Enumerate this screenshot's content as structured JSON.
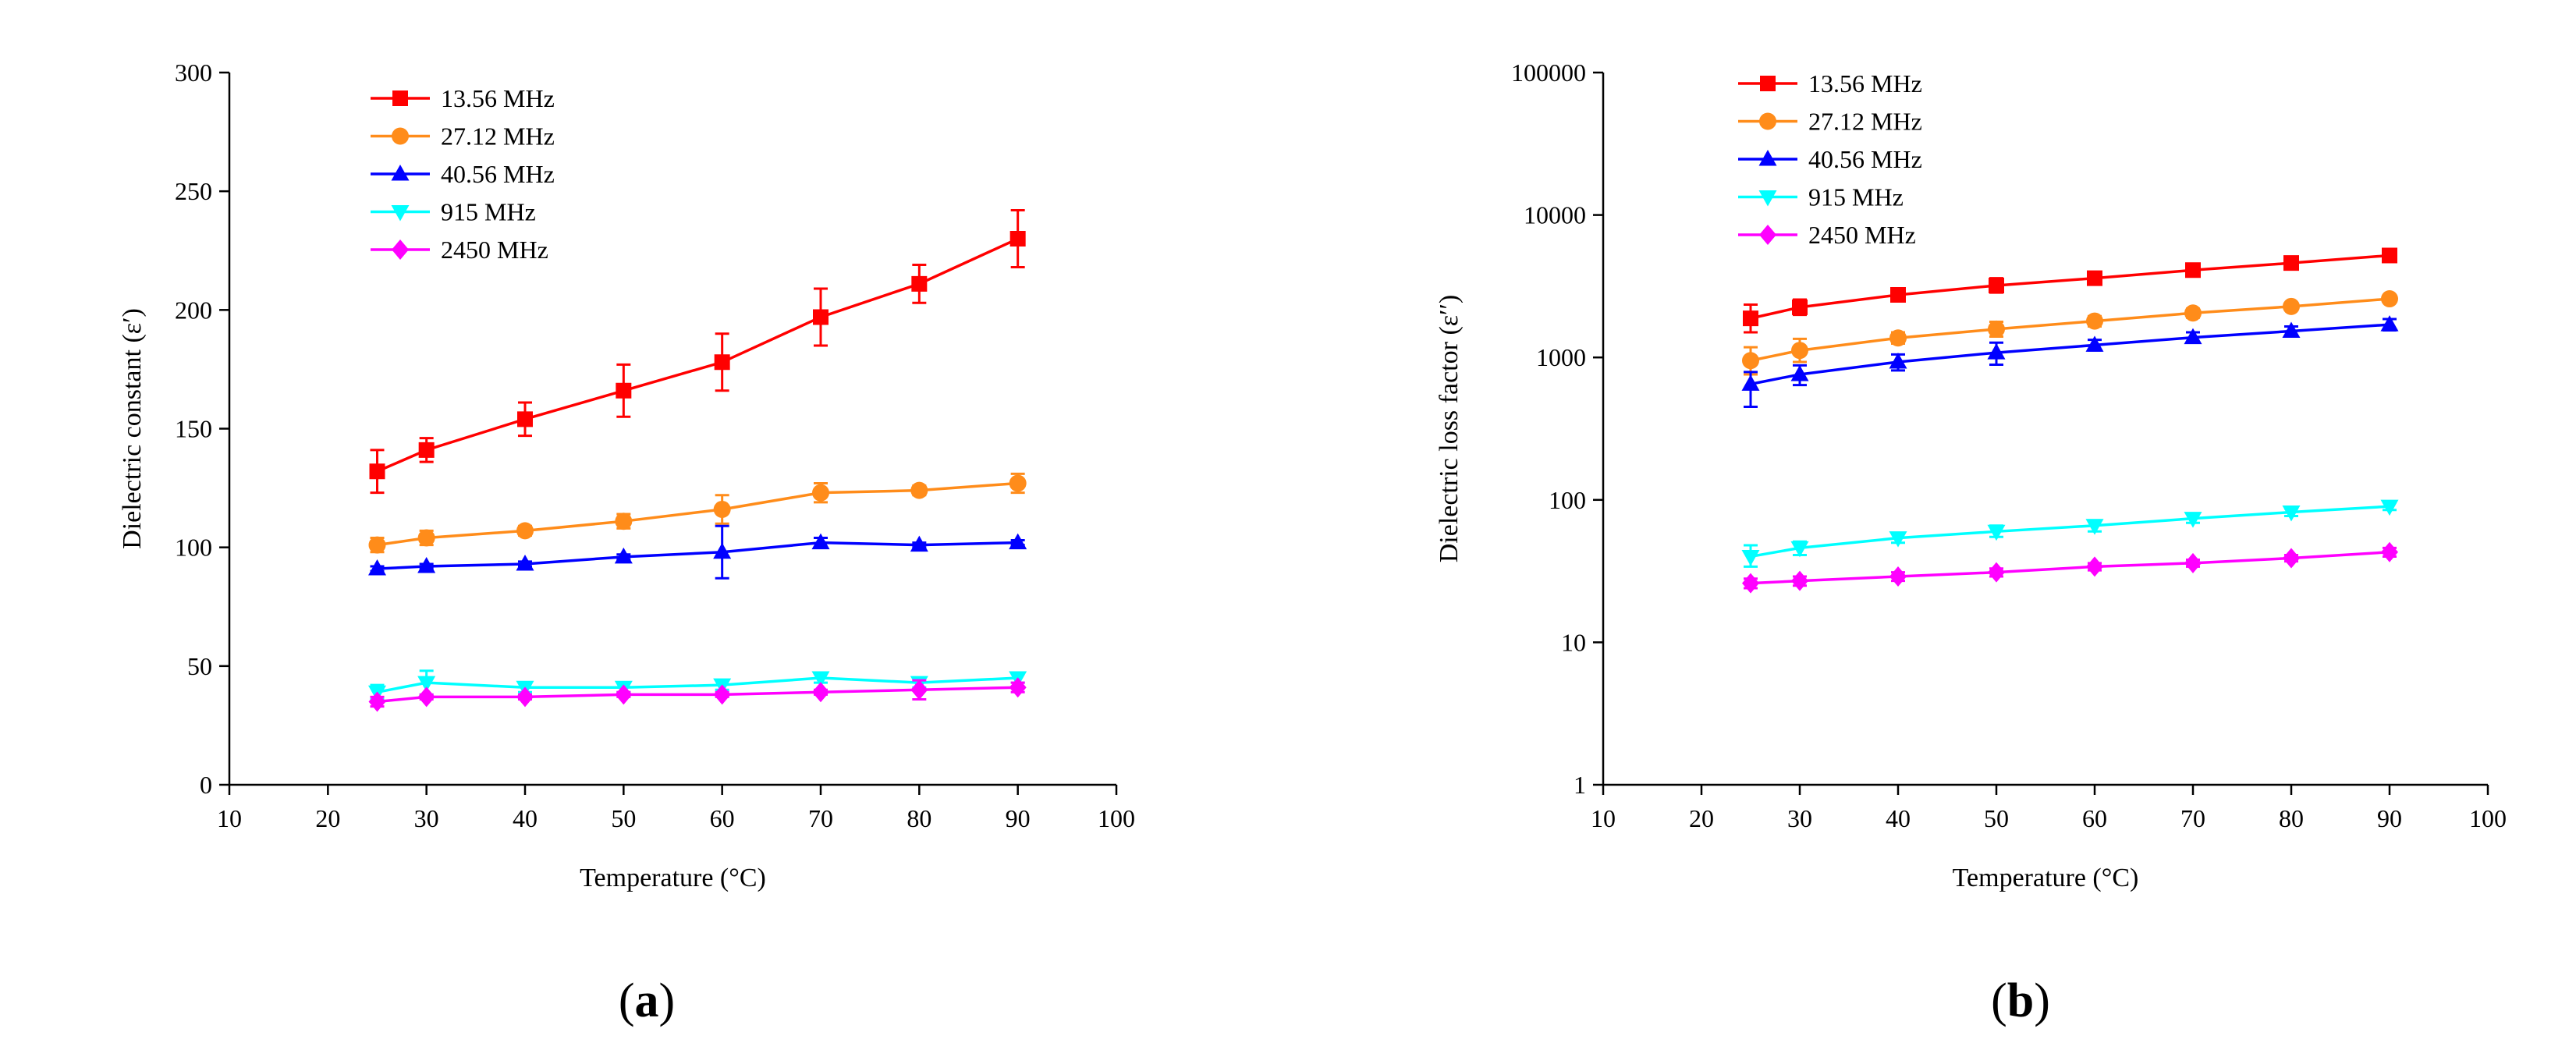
{
  "panels": [
    {
      "label_open": "(",
      "letter": "a",
      "label_close": ")"
    },
    {
      "label_open": "(",
      "letter": "b",
      "label_close": ")"
    }
  ],
  "chart_data": [
    {
      "type": "line",
      "panel": "a",
      "xlabel": "Temperature (°C)",
      "ylabel": "Dielectric constant (ε′)",
      "xlim": [
        10,
        100
      ],
      "ylim": [
        0,
        300
      ],
      "yscale": "linear",
      "xticks": [
        10,
        20,
        30,
        40,
        50,
        60,
        70,
        80,
        90,
        100
      ],
      "yticks": [
        0,
        50,
        100,
        150,
        200,
        250,
        300
      ],
      "grid": false,
      "legend_position": "top-left",
      "x": [
        25,
        30,
        40,
        50,
        60,
        70,
        80,
        90
      ],
      "series": [
        {
          "name": "13.56 MHz",
          "color": "#ff0000",
          "marker": "square",
          "values": [
            132,
            141,
            154,
            166,
            178,
            197,
            211,
            230
          ],
          "errors": [
            9,
            5,
            7,
            11,
            12,
            12,
            8,
            12
          ]
        },
        {
          "name": "27.12 MHz",
          "color": "#ff8c1a",
          "marker": "circle",
          "values": [
            101,
            104,
            107,
            111,
            116,
            123,
            124,
            127
          ],
          "errors": [
            3,
            3,
            2,
            3,
            6,
            4,
            2,
            4
          ]
        },
        {
          "name": "40.56 MHz",
          "color": "#0000ff",
          "marker": "triangle-up",
          "values": [
            91,
            92,
            93,
            96,
            98,
            102,
            101,
            102
          ],
          "errors": [
            1,
            1,
            1,
            1,
            11,
            2,
            1,
            1
          ]
        },
        {
          "name": "915 MHz",
          "color": "#00ffff",
          "marker": "triangle-down",
          "values": [
            39,
            43,
            41,
            41,
            42,
            45,
            43,
            45
          ],
          "errors": [
            3,
            5,
            2,
            2,
            2,
            2,
            2,
            2
          ]
        },
        {
          "name": "2450 MHz",
          "color": "#ff00ff",
          "marker": "diamond",
          "values": [
            35,
            37,
            37,
            38,
            38,
            39,
            40,
            41
          ],
          "errors": [
            2,
            1,
            1,
            1,
            1,
            1,
            4,
            2
          ]
        }
      ]
    },
    {
      "type": "line",
      "panel": "b",
      "xlabel": "Temperature (°C)",
      "ylabel": "Dielectric loss factor (ε′′)",
      "xlim": [
        10,
        100
      ],
      "ylim": [
        1,
        100000
      ],
      "yscale": "log",
      "xticks": [
        10,
        20,
        30,
        40,
        50,
        60,
        70,
        80,
        90,
        100
      ],
      "yticks": [
        1,
        10,
        100,
        1000,
        10000,
        100000
      ],
      "grid": false,
      "legend_position": "top-left",
      "x": [
        25,
        30,
        40,
        50,
        60,
        70,
        80,
        90
      ],
      "series": [
        {
          "name": "13.56 MHz",
          "color": "#ff0000",
          "marker": "square",
          "values": [
            1880,
            2250,
            2750,
            3200,
            3600,
            4100,
            4600,
            5200
          ],
          "err_low": [
            1500,
            1990,
            2550,
            2850,
            3350,
            3900,
            4400,
            5000
          ],
          "err_high": [
            2350,
            2550,
            2950,
            3600,
            3850,
            4300,
            4800,
            5400
          ]
        },
        {
          "name": "27.12  MHz",
          "color": "#ff8c1a",
          "marker": "circle",
          "values": [
            950,
            1120,
            1370,
            1580,
            1800,
            2050,
            2280,
            2580
          ],
          "err_low": [
            760,
            930,
            1250,
            1400,
            1650,
            1900,
            2150,
            2450
          ],
          "err_high": [
            1180,
            1350,
            1500,
            1780,
            1950,
            2200,
            2400,
            2720
          ]
        },
        {
          "name": "40.56  MHz",
          "color": "#0000ff",
          "marker": "triangle-up",
          "values": [
            650,
            760,
            930,
            1080,
            1220,
            1380,
            1530,
            1700
          ],
          "err_low": [
            450,
            640,
            810,
            890,
            1120,
            1270,
            1420,
            1550
          ],
          "err_high": [
            790,
            880,
            1050,
            1270,
            1330,
            1500,
            1650,
            1860
          ]
        },
        {
          "name": "915  MHz",
          "color": "#00ffff",
          "marker": "triangle-down",
          "values": [
            40,
            46,
            54,
            60,
            66,
            74,
            82,
            90
          ],
          "err_low": [
            34,
            41,
            50,
            55,
            60,
            69,
            77,
            85
          ],
          "err_high": [
            48,
            51,
            58,
            66,
            72,
            80,
            87,
            96
          ]
        },
        {
          "name": "2450  MHz",
          "color": "#ff00ff",
          "marker": "diamond",
          "values": [
            26,
            27,
            29,
            31,
            34,
            36,
            39,
            43
          ],
          "err_low": [
            24,
            25,
            27,
            29,
            32,
            34,
            37,
            40
          ],
          "err_high": [
            28,
            29,
            31,
            33,
            36,
            38,
            41,
            46
          ]
        }
      ]
    }
  ]
}
